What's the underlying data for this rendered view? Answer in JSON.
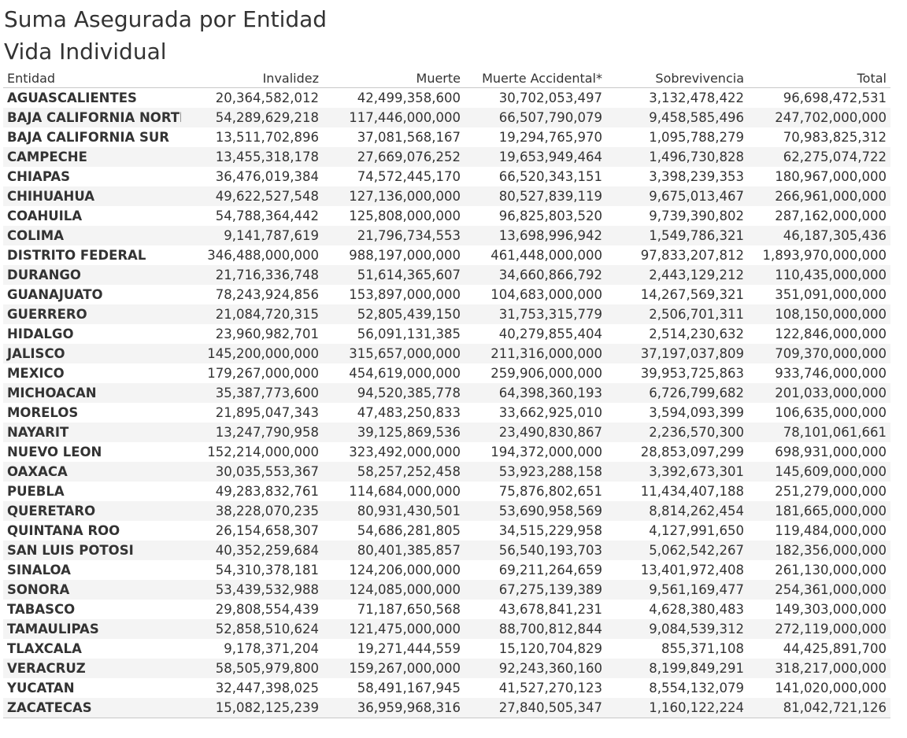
{
  "titles": [
    "Suma Asegurada por Entidad",
    "Vida Individual"
  ],
  "chart_data": {
    "type": "table",
    "title": "Suma Asegurada por Entidad",
    "subtitle": "Vida Individual",
    "columns": [
      "Entidad",
      "Invalidez",
      "Muerte",
      "Muerte Accidental*",
      "Sobrevivencia",
      "Total"
    ],
    "rows": [
      [
        "AGUASCALIENTES",
        "20,364,582,012",
        "42,499,358,600",
        "30,702,053,497",
        "3,132,478,422",
        "96,698,472,531"
      ],
      [
        "BAJA CALIFORNIA NORTE",
        "54,289,629,218",
        "117,446,000,000",
        "66,507,790,079",
        "9,458,585,496",
        "247,702,000,000"
      ],
      [
        "BAJA CALIFORNIA SUR",
        "13,511,702,896",
        "37,081,568,167",
        "19,294,765,970",
        "1,095,788,279",
        "70,983,825,312"
      ],
      [
        "CAMPECHE",
        "13,455,318,178",
        "27,669,076,252",
        "19,653,949,464",
        "1,496,730,828",
        "62,275,074,722"
      ],
      [
        "CHIAPAS",
        "36,476,019,384",
        "74,572,445,170",
        "66,520,343,151",
        "3,398,239,353",
        "180,967,000,000"
      ],
      [
        "CHIHUAHUA",
        "49,622,527,548",
        "127,136,000,000",
        "80,527,839,119",
        "9,675,013,467",
        "266,961,000,000"
      ],
      [
        "COAHUILA",
        "54,788,364,442",
        "125,808,000,000",
        "96,825,803,520",
        "9,739,390,802",
        "287,162,000,000"
      ],
      [
        "COLIMA",
        "9,141,787,619",
        "21,796,734,553",
        "13,698,996,942",
        "1,549,786,321",
        "46,187,305,436"
      ],
      [
        "DISTRITO FEDERAL",
        "346,488,000,000",
        "988,197,000,000",
        "461,448,000,000",
        "97,833,207,812",
        "1,893,970,000,000"
      ],
      [
        "DURANGO",
        "21,716,336,748",
        "51,614,365,607",
        "34,660,866,792",
        "2,443,129,212",
        "110,435,000,000"
      ],
      [
        "GUANAJUATO",
        "78,243,924,856",
        "153,897,000,000",
        "104,683,000,000",
        "14,267,569,321",
        "351,091,000,000"
      ],
      [
        "GUERRERO",
        "21,084,720,315",
        "52,805,439,150",
        "31,753,315,779",
        "2,506,701,311",
        "108,150,000,000"
      ],
      [
        "HIDALGO",
        "23,960,982,701",
        "56,091,131,385",
        "40,279,855,404",
        "2,514,230,632",
        "122,846,000,000"
      ],
      [
        "JALISCO",
        "145,200,000,000",
        "315,657,000,000",
        "211,316,000,000",
        "37,197,037,809",
        "709,370,000,000"
      ],
      [
        "MEXICO",
        "179,267,000,000",
        "454,619,000,000",
        "259,906,000,000",
        "39,953,725,863",
        "933,746,000,000"
      ],
      [
        "MICHOACAN",
        "35,387,773,600",
        "94,520,385,778",
        "64,398,360,193",
        "6,726,799,682",
        "201,033,000,000"
      ],
      [
        "MORELOS",
        "21,895,047,343",
        "47,483,250,833",
        "33,662,925,010",
        "3,594,093,399",
        "106,635,000,000"
      ],
      [
        "NAYARIT",
        "13,247,790,958",
        "39,125,869,536",
        "23,490,830,867",
        "2,236,570,300",
        "78,101,061,661"
      ],
      [
        "NUEVO LEON",
        "152,214,000,000",
        "323,492,000,000",
        "194,372,000,000",
        "28,853,097,299",
        "698,931,000,000"
      ],
      [
        "OAXACA",
        "30,035,553,367",
        "58,257,252,458",
        "53,923,288,158",
        "3,392,673,301",
        "145,609,000,000"
      ],
      [
        "PUEBLA",
        "49,283,832,761",
        "114,684,000,000",
        "75,876,802,651",
        "11,434,407,188",
        "251,279,000,000"
      ],
      [
        "QUERETARO",
        "38,228,070,235",
        "80,931,430,501",
        "53,690,958,569",
        "8,814,262,454",
        "181,665,000,000"
      ],
      [
        "QUINTANA ROO",
        "26,154,658,307",
        "54,686,281,805",
        "34,515,229,958",
        "4,127,991,650",
        "119,484,000,000"
      ],
      [
        "SAN LUIS POTOSI",
        "40,352,259,684",
        "80,401,385,857",
        "56,540,193,703",
        "5,062,542,267",
        "182,356,000,000"
      ],
      [
        "SINALOA",
        "54,310,378,181",
        "124,206,000,000",
        "69,211,264,659",
        "13,401,972,408",
        "261,130,000,000"
      ],
      [
        "SONORA",
        "53,439,532,988",
        "124,085,000,000",
        "67,275,139,389",
        "9,561,169,477",
        "254,361,000,000"
      ],
      [
        "TABASCO",
        "29,808,554,439",
        "71,187,650,568",
        "43,678,841,231",
        "4,628,380,483",
        "149,303,000,000"
      ],
      [
        "TAMAULIPAS",
        "52,858,510,624",
        "121,475,000,000",
        "88,700,812,844",
        "9,084,539,312",
        "272,119,000,000"
      ],
      [
        "TLAXCALA",
        "9,178,371,204",
        "19,271,444,559",
        "15,120,704,829",
        "855,371,108",
        "44,425,891,700"
      ],
      [
        "VERACRUZ",
        "58,505,979,800",
        "159,267,000,000",
        "92,243,360,160",
        "8,199,849,291",
        "318,217,000,000"
      ],
      [
        "YUCATAN",
        "32,447,398,025",
        "58,491,167,945",
        "41,527,270,123",
        "8,554,132,079",
        "141,020,000,000"
      ],
      [
        "ZACATECAS",
        "15,082,125,239",
        "36,959,968,316",
        "27,840,505,347",
        "1,160,122,224",
        "81,042,721,126"
      ]
    ]
  }
}
